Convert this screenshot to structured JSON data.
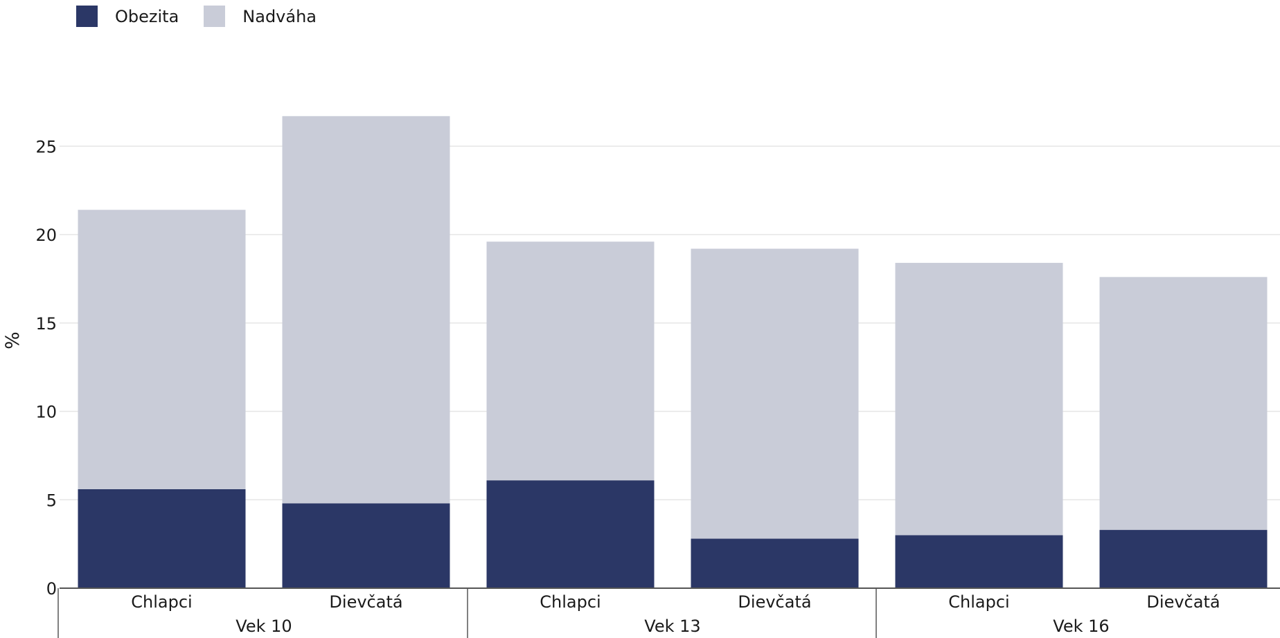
{
  "chart_data": {
    "type": "bar",
    "stacked": true,
    "ylabel": "%",
    "ylim": [
      0,
      28
    ],
    "yticks": [
      0,
      5,
      10,
      15,
      20,
      25
    ],
    "grid": true,
    "legend_position": "top-left",
    "categories": [
      "Chlapci",
      "Dievčatá",
      "Chlapci",
      "Dievčatá",
      "Chlapci",
      "Dievčatá"
    ],
    "groups": [
      {
        "label": "Vek 10",
        "span": [
          0,
          1
        ]
      },
      {
        "label": "Vek 13",
        "span": [
          2,
          3
        ]
      },
      {
        "label": "Vek 16",
        "span": [
          4,
          5
        ]
      }
    ],
    "series": [
      {
        "name": "Obezita",
        "color": "#2b3766",
        "values": [
          5.6,
          4.8,
          6.1,
          2.8,
          3.0,
          3.3
        ]
      },
      {
        "name": "Nadváha",
        "color": "#c9ccd8",
        "values": [
          15.8,
          21.9,
          13.5,
          16.4,
          15.4,
          14.3
        ]
      }
    ]
  }
}
